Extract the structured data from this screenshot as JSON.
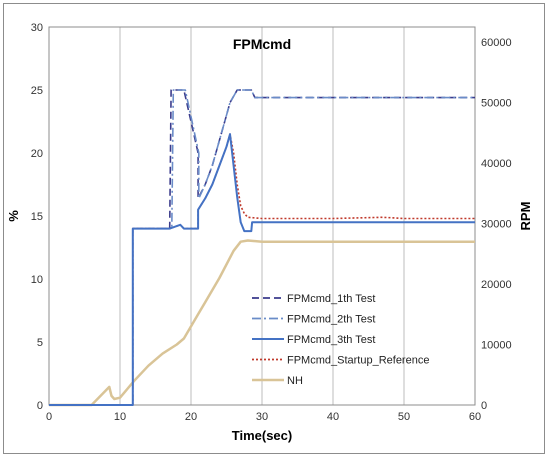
{
  "chart_data": {
    "type": "line",
    "title": "FPMcmd",
    "xlabel": "Time(sec)",
    "ylabel": "%",
    "y2label": "RPM",
    "xlim": [
      0,
      60
    ],
    "ylim": [
      0,
      30
    ],
    "y2lim": [
      0,
      62500
    ],
    "xticks": [
      0,
      10,
      20,
      30,
      40,
      50,
      60
    ],
    "yticks": [
      0,
      5,
      10,
      15,
      20,
      25,
      30
    ],
    "y2ticks": [
      0,
      10000,
      20000,
      30000,
      40000,
      50000,
      60000
    ],
    "grid": {
      "x": true,
      "y": false
    },
    "legend_position": "lower-center",
    "series": [
      {
        "name": "FPMcmd_1th Test",
        "axis": "left",
        "color": "#3b3b8c",
        "style": "dashed",
        "x": [
          0,
          11.8,
          11.8,
          17,
          17.2,
          19,
          21,
          21,
          22,
          23,
          24,
          25,
          25.5,
          26.5,
          27.5,
          28,
          28.5,
          29,
          30,
          40,
          50,
          60
        ],
        "y": [
          0,
          0,
          14,
          14,
          25,
          25,
          20,
          16.4,
          17.5,
          19,
          21,
          23,
          24,
          25,
          25,
          25,
          25,
          24.4,
          24.4,
          24.4,
          24.4,
          24.4
        ]
      },
      {
        "name": "FPMcmd_2th Test",
        "axis": "left",
        "color": "#6a8cc8",
        "style": "dashdot",
        "x": [
          0,
          11.8,
          11.8,
          17.3,
          17.5,
          19.2,
          21.1,
          21.1,
          22,
          23,
          24,
          25,
          25.5,
          26.5,
          27.5,
          28,
          28.5,
          29,
          30,
          40,
          50,
          60
        ],
        "y": [
          0,
          0,
          14,
          14,
          25,
          25,
          20,
          16.4,
          17.5,
          19,
          21,
          23,
          24,
          25,
          25,
          25,
          25,
          24.4,
          24.4,
          24.4,
          24.4,
          24.4
        ]
      },
      {
        "name": "FPMcmd_3th Test",
        "axis": "left",
        "color": "#4472c4",
        "style": "solid",
        "x": [
          0,
          11.8,
          11.8,
          17,
          18.5,
          19,
          21,
          21,
          22,
          23,
          24,
          25,
          25.5,
          26,
          26.5,
          27,
          27.5,
          28.5,
          28.6,
          29,
          30,
          40,
          50,
          60
        ],
        "y": [
          0,
          0,
          14,
          14,
          14.3,
          14,
          14,
          15.5,
          16.4,
          17.5,
          19,
          20.5,
          21.5,
          19,
          16.5,
          14.5,
          13.8,
          13.8,
          14.5,
          14.5,
          14.5,
          14.5,
          14.5,
          14.5
        ],
        "width": 2
      },
      {
        "name": "FPMcmd_Startup_Reference",
        "axis": "left",
        "color": "#c0392b",
        "style": "dotted",
        "x": [
          0,
          11.8,
          11.8,
          17,
          18.5,
          19,
          21,
          21,
          22,
          23,
          24,
          25,
          25.5,
          26,
          26.5,
          27,
          27.5,
          28,
          30,
          40,
          47,
          50,
          60
        ],
        "y": [
          0,
          0,
          14,
          14,
          14.3,
          14,
          14,
          15.5,
          16.4,
          17.5,
          19,
          20.5,
          21.5,
          20,
          17.5,
          15.8,
          15.2,
          14.9,
          14.8,
          14.8,
          14.9,
          14.8,
          14.8
        ]
      },
      {
        "name": "NH",
        "axis": "right",
        "color": "#d9c497",
        "style": "solid",
        "x": [
          0,
          6,
          8.5,
          8.8,
          9.2,
          10,
          12,
          14,
          16,
          18,
          19,
          21,
          22,
          24,
          26,
          27,
          28,
          30,
          35,
          45,
          55,
          60
        ],
        "y": [
          0,
          0,
          3000,
          1500,
          1000,
          1200,
          4000,
          6500,
          8500,
          10000,
          11000,
          15000,
          17000,
          21000,
          25500,
          27000,
          27200,
          27000,
          27000,
          27000,
          27000,
          27000
        ],
        "width": 2.5
      }
    ]
  }
}
